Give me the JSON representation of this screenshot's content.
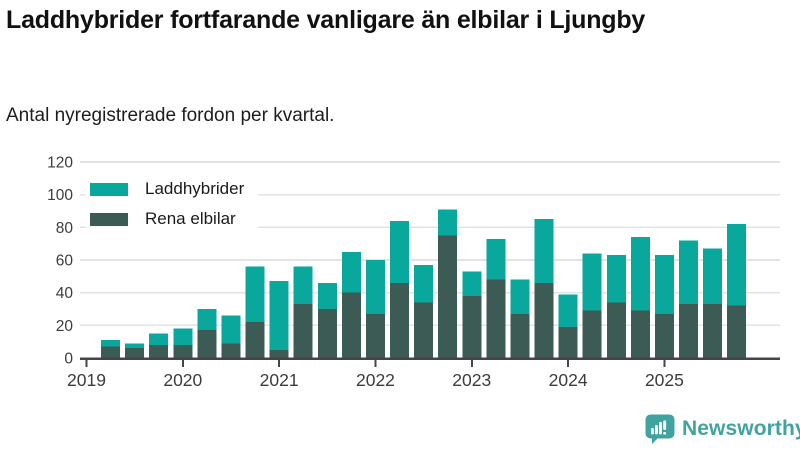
{
  "header": {
    "title": "Laddhybrider fortfarande vanligare än elbilar i Ljungby",
    "subtitle": "Antal nyregistrerade fordon per kvartal."
  },
  "legend": [
    {
      "label": "Laddhybrider",
      "color": "#0aa79d"
    },
    {
      "label": "Rena elbilar",
      "color": "#3d5b55"
    }
  ],
  "branding": {
    "logo_text": "Newsworthy",
    "color": "#41a3a0"
  },
  "colors": {
    "laddhybrider": "#0aa79d",
    "rena_elbilar": "#3d5b55",
    "gridline": "#e3e3e3",
    "axis": "#454545",
    "tick_label": "#3c3c3c",
    "title_text": "#111111",
    "background": "#ffffff"
  },
  "chart_data": {
    "type": "bar",
    "stacked": true,
    "title": "Laddhybrider fortfarande vanligare än elbilar i Ljungby",
    "subtitle": "Antal nyregistrerade fordon per kvartal.",
    "xlabel": "",
    "ylabel": "",
    "ylim": [
      0,
      120
    ],
    "y_ticks": [
      0,
      20,
      40,
      60,
      80,
      100,
      120
    ],
    "x_tick_labels": [
      "2019",
      "2020",
      "2021",
      "2022",
      "2023",
      "2024",
      "2025"
    ],
    "grid": "horizontal",
    "legend_position": "top-left",
    "categories": [
      "2019 Q2",
      "2019 Q3",
      "2019 Q4",
      "2020 Q1",
      "2020 Q2",
      "2020 Q3",
      "2020 Q4",
      "2021 Q1",
      "2021 Q2",
      "2021 Q3",
      "2021 Q4",
      "2022 Q1",
      "2022 Q2",
      "2022 Q3",
      "2022 Q4",
      "2023 Q1",
      "2023 Q2",
      "2023 Q3",
      "2023 Q4",
      "2024 Q1",
      "2024 Q2",
      "2024 Q3",
      "2024 Q4",
      "2025 Q1",
      "2025 Q2",
      "2025 Q3",
      "2025 Q4"
    ],
    "stack_bottom": "Rena elbilar",
    "series": [
      {
        "name": "Laddhybrider",
        "color": "#0aa79d",
        "values": [
          4,
          3,
          7,
          10,
          13,
          17,
          34,
          42,
          23,
          16,
          25,
          33,
          38,
          23,
          16,
          15,
          25,
          21,
          39,
          20,
          35,
          29,
          45,
          36,
          39,
          34,
          50
        ]
      },
      {
        "name": "Rena elbilar",
        "color": "#3d5b55",
        "values": [
          7,
          6,
          8,
          8,
          17,
          9,
          22,
          5,
          33,
          30,
          40,
          27,
          46,
          34,
          75,
          38,
          48,
          27,
          46,
          19,
          29,
          34,
          29,
          27,
          33,
          33,
          32
        ]
      }
    ],
    "totals": [
      11,
      9,
      15,
      18,
      30,
      26,
      56,
      47,
      56,
      46,
      65,
      60,
      84,
      57,
      91,
      53,
      73,
      48,
      85,
      39,
      64,
      63,
      74,
      63,
      72,
      67,
      82
    ]
  }
}
